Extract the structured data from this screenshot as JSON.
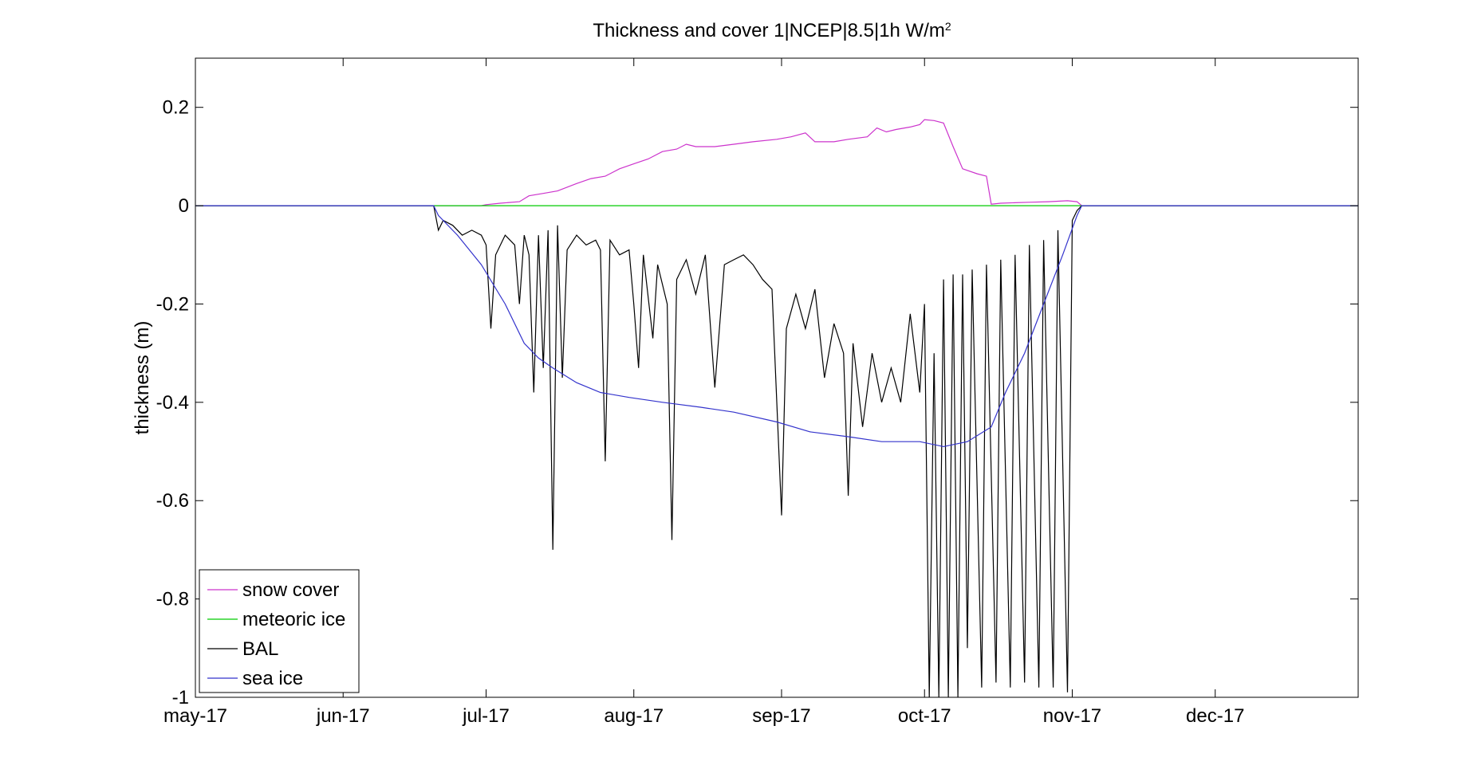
{
  "chart_data": {
    "type": "line",
    "title": "Thickness and cover 1|NCEP|8.5|1h W/m",
    "title_superscript": "2",
    "xlabel": "",
    "ylabel": "thickness (m)",
    "x_axis": "date",
    "xlim": [
      "2017-05-01",
      "2017-12-31"
    ],
    "ylim": [
      -1,
      0.3
    ],
    "xticks": [
      {
        "date": "2017-05-01",
        "label": "may-17"
      },
      {
        "date": "2017-06-01",
        "label": "jun-17"
      },
      {
        "date": "2017-07-01",
        "label": "jul-17"
      },
      {
        "date": "2017-08-01",
        "label": "aug-17"
      },
      {
        "date": "2017-09-01",
        "label": "sep-17"
      },
      {
        "date": "2017-10-01",
        "label": "oct-17"
      },
      {
        "date": "2017-11-01",
        "label": "nov-17"
      },
      {
        "date": "2017-12-01",
        "label": "dec-17"
      }
    ],
    "yticks": [
      {
        "value": 0.2,
        "label": "0.2"
      },
      {
        "value": 0,
        "label": "0"
      },
      {
        "value": -0.2,
        "label": "-0.2"
      },
      {
        "value": -0.4,
        "label": "-0.4"
      },
      {
        "value": -0.6,
        "label": "-0.6"
      },
      {
        "value": -0.8,
        "label": "-0.8"
      },
      {
        "value": -1,
        "label": "-1"
      }
    ],
    "grid": false,
    "legend_position": "bottom-left",
    "series": [
      {
        "name": "snow cover",
        "color": "#cc33cc",
        "points": [
          [
            "2017-05-01",
            0
          ],
          [
            "2017-06-30",
            0
          ],
          [
            "2017-07-01",
            0.002
          ],
          [
            "2017-07-04",
            0.005
          ],
          [
            "2017-07-08",
            0.008
          ],
          [
            "2017-07-10",
            0.02
          ],
          [
            "2017-07-13",
            0.025
          ],
          [
            "2017-07-16",
            0.03
          ],
          [
            "2017-07-20",
            0.045
          ],
          [
            "2017-07-23",
            0.055
          ],
          [
            "2017-07-26",
            0.06
          ],
          [
            "2017-07-29",
            0.075
          ],
          [
            "2017-08-01",
            0.085
          ],
          [
            "2017-08-04",
            0.095
          ],
          [
            "2017-08-07",
            0.11
          ],
          [
            "2017-08-10",
            0.115
          ],
          [
            "2017-08-12",
            0.125
          ],
          [
            "2017-08-14",
            0.12
          ],
          [
            "2017-08-18",
            0.12
          ],
          [
            "2017-08-22",
            0.125
          ],
          [
            "2017-08-26",
            0.13
          ],
          [
            "2017-08-31",
            0.135
          ],
          [
            "2017-09-03",
            0.14
          ],
          [
            "2017-09-06",
            0.148
          ],
          [
            "2017-09-08",
            0.13
          ],
          [
            "2017-09-12",
            0.13
          ],
          [
            "2017-09-15",
            0.135
          ],
          [
            "2017-09-19",
            0.14
          ],
          [
            "2017-09-21",
            0.158
          ],
          [
            "2017-09-23",
            0.15
          ],
          [
            "2017-09-25",
            0.155
          ],
          [
            "2017-09-28",
            0.16
          ],
          [
            "2017-09-30",
            0.165
          ],
          [
            "2017-10-01",
            0.175
          ],
          [
            "2017-10-03",
            0.173
          ],
          [
            "2017-10-05",
            0.168
          ],
          [
            "2017-10-07",
            0.12
          ],
          [
            "2017-10-09",
            0.075
          ],
          [
            "2017-10-12",
            0.065
          ],
          [
            "2017-10-14",
            0.06
          ],
          [
            "2017-10-15",
            0.003
          ],
          [
            "2017-10-17",
            0.005
          ],
          [
            "2017-10-20",
            0.006
          ],
          [
            "2017-10-23",
            0.007
          ],
          [
            "2017-10-27",
            0.008
          ],
          [
            "2017-10-31",
            0.01
          ],
          [
            "2017-11-02",
            0.008
          ],
          [
            "2017-11-03",
            0
          ],
          [
            "2017-12-31",
            0
          ]
        ]
      },
      {
        "name": "meteoric ice",
        "color": "#00cc00",
        "points": [
          [
            "2017-05-01",
            0
          ],
          [
            "2017-12-31",
            0
          ]
        ]
      },
      {
        "name": "BAL",
        "color": "#000000",
        "points": [
          [
            "2017-05-01",
            0
          ],
          [
            "2017-06-20",
            0
          ],
          [
            "2017-06-21",
            -0.05
          ],
          [
            "2017-06-22",
            -0.03
          ],
          [
            "2017-06-24",
            -0.04
          ],
          [
            "2017-06-26",
            -0.06
          ],
          [
            "2017-06-28",
            -0.05
          ],
          [
            "2017-06-30",
            -0.06
          ],
          [
            "2017-07-01",
            -0.08
          ],
          [
            "2017-07-02",
            -0.25
          ],
          [
            "2017-07-03",
            -0.1
          ],
          [
            "2017-07-05",
            -0.06
          ],
          [
            "2017-07-07",
            -0.08
          ],
          [
            "2017-07-08",
            -0.2
          ],
          [
            "2017-07-09",
            -0.06
          ],
          [
            "2017-07-10",
            -0.1
          ],
          [
            "2017-07-11",
            -0.38
          ],
          [
            "2017-07-12",
            -0.06
          ],
          [
            "2017-07-13",
            -0.33
          ],
          [
            "2017-07-14",
            -0.05
          ],
          [
            "2017-07-15",
            -0.7
          ],
          [
            "2017-07-16",
            -0.04
          ],
          [
            "2017-07-17",
            -0.35
          ],
          [
            "2017-07-18",
            -0.09
          ],
          [
            "2017-07-20",
            -0.06
          ],
          [
            "2017-07-22",
            -0.08
          ],
          [
            "2017-07-24",
            -0.07
          ],
          [
            "2017-07-25",
            -0.09
          ],
          [
            "2017-07-26",
            -0.52
          ],
          [
            "2017-07-27",
            -0.07
          ],
          [
            "2017-07-29",
            -0.1
          ],
          [
            "2017-07-31",
            -0.09
          ],
          [
            "2017-08-01",
            -0.2
          ],
          [
            "2017-08-02",
            -0.33
          ],
          [
            "2017-08-03",
            -0.1
          ],
          [
            "2017-08-05",
            -0.27
          ],
          [
            "2017-08-06",
            -0.12
          ],
          [
            "2017-08-08",
            -0.2
          ],
          [
            "2017-08-09",
            -0.68
          ],
          [
            "2017-08-10",
            -0.15
          ],
          [
            "2017-08-12",
            -0.11
          ],
          [
            "2017-08-14",
            -0.18
          ],
          [
            "2017-08-16",
            -0.1
          ],
          [
            "2017-08-18",
            -0.37
          ],
          [
            "2017-08-20",
            -0.12
          ],
          [
            "2017-08-22",
            -0.11
          ],
          [
            "2017-08-24",
            -0.1
          ],
          [
            "2017-08-26",
            -0.12
          ],
          [
            "2017-08-28",
            -0.15
          ],
          [
            "2017-08-30",
            -0.17
          ],
          [
            "2017-09-01",
            -0.63
          ],
          [
            "2017-09-02",
            -0.25
          ],
          [
            "2017-09-04",
            -0.18
          ],
          [
            "2017-09-06",
            -0.25
          ],
          [
            "2017-09-08",
            -0.17
          ],
          [
            "2017-09-10",
            -0.35
          ],
          [
            "2017-09-12",
            -0.24
          ],
          [
            "2017-09-14",
            -0.3
          ],
          [
            "2017-09-15",
            -0.59
          ],
          [
            "2017-09-16",
            -0.28
          ],
          [
            "2017-09-18",
            -0.45
          ],
          [
            "2017-09-20",
            -0.3
          ],
          [
            "2017-09-22",
            -0.4
          ],
          [
            "2017-09-24",
            -0.33
          ],
          [
            "2017-09-26",
            -0.4
          ],
          [
            "2017-09-28",
            -0.22
          ],
          [
            "2017-09-30",
            -0.38
          ],
          [
            "2017-10-01",
            -0.2
          ],
          [
            "2017-10-02",
            -1.0
          ],
          [
            "2017-10-03",
            -0.3
          ],
          [
            "2017-10-04",
            -1.0
          ],
          [
            "2017-10-05",
            -0.15
          ],
          [
            "2017-10-06",
            -1.0
          ],
          [
            "2017-10-07",
            -0.14
          ],
          [
            "2017-10-08",
            -1.0
          ],
          [
            "2017-10-09",
            -0.14
          ],
          [
            "2017-10-10",
            -0.9
          ],
          [
            "2017-10-11",
            -0.13
          ],
          [
            "2017-10-13",
            -0.98
          ],
          [
            "2017-10-14",
            -0.12
          ],
          [
            "2017-10-16",
            -0.97
          ],
          [
            "2017-10-17",
            -0.11
          ],
          [
            "2017-10-19",
            -0.98
          ],
          [
            "2017-10-20",
            -0.1
          ],
          [
            "2017-10-22",
            -0.97
          ],
          [
            "2017-10-23",
            -0.08
          ],
          [
            "2017-10-25",
            -0.98
          ],
          [
            "2017-10-26",
            -0.07
          ],
          [
            "2017-10-28",
            -0.98
          ],
          [
            "2017-10-29",
            -0.05
          ],
          [
            "2017-10-31",
            -0.99
          ],
          [
            "2017-11-01",
            -0.03
          ],
          [
            "2017-11-02",
            -0.01
          ],
          [
            "2017-11-03",
            0
          ],
          [
            "2017-12-31",
            0
          ]
        ]
      },
      {
        "name": "sea ice",
        "color": "#3333cc",
        "points": [
          [
            "2017-05-01",
            0
          ],
          [
            "2017-06-20",
            0
          ],
          [
            "2017-06-21",
            -0.02
          ],
          [
            "2017-06-25",
            -0.06
          ],
          [
            "2017-06-30",
            -0.12
          ],
          [
            "2017-07-05",
            -0.2
          ],
          [
            "2017-07-09",
            -0.28
          ],
          [
            "2017-07-12",
            -0.31
          ],
          [
            "2017-07-15",
            -0.33
          ],
          [
            "2017-07-20",
            -0.36
          ],
          [
            "2017-07-25",
            -0.38
          ],
          [
            "2017-07-31",
            -0.39
          ],
          [
            "2017-08-07",
            -0.4
          ],
          [
            "2017-08-15",
            -0.41
          ],
          [
            "2017-08-22",
            -0.42
          ],
          [
            "2017-08-31",
            -0.44
          ],
          [
            "2017-09-07",
            -0.46
          ],
          [
            "2017-09-15",
            -0.47
          ],
          [
            "2017-09-22",
            -0.48
          ],
          [
            "2017-09-30",
            -0.48
          ],
          [
            "2017-10-05",
            -0.49
          ],
          [
            "2017-10-10",
            -0.48
          ],
          [
            "2017-10-15",
            -0.45
          ],
          [
            "2017-10-18",
            -0.38
          ],
          [
            "2017-10-22",
            -0.3
          ],
          [
            "2017-10-26",
            -0.2
          ],
          [
            "2017-10-30",
            -0.1
          ],
          [
            "2017-11-02",
            -0.02
          ],
          [
            "2017-11-03",
            0
          ],
          [
            "2017-12-31",
            0
          ]
        ]
      }
    ]
  }
}
